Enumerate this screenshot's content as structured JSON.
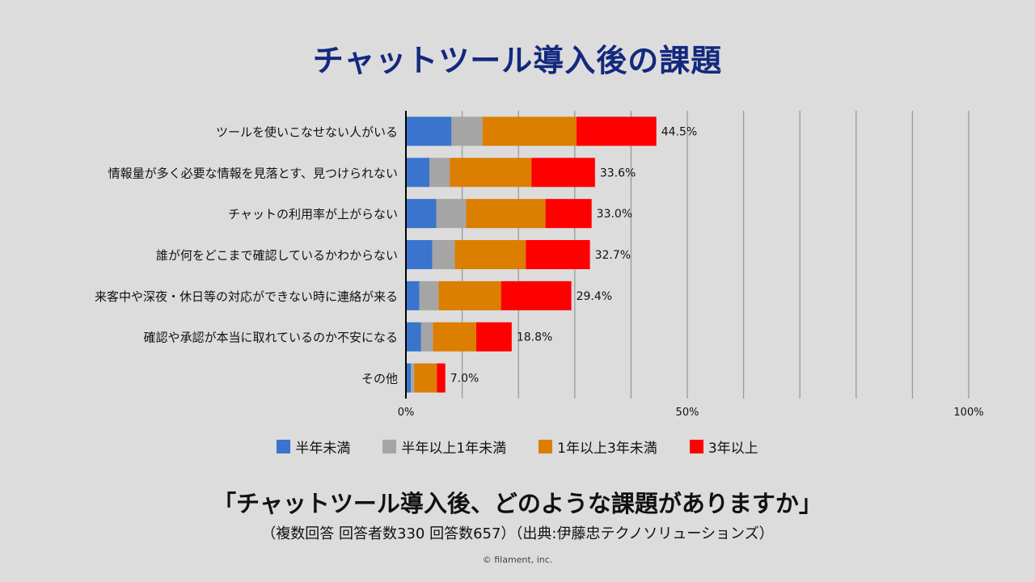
{
  "title": "チャットツール導入後の課題",
  "chart_data": {
    "type": "bar",
    "orientation": "horizontal",
    "stacked": true,
    "title": "チャットツール導入後の課題",
    "categories": [
      "ツールを使いこなせない人がいる",
      "情報量が多く必要な情報を見落とす、見つけられない",
      "チャットの利用率が上がらない",
      "誰が何をどこまで確認しているかわからない",
      "来客中や深夜・休日等の対応ができない時に連絡が来る",
      "確認や承認が本当に取れているのか不安になる",
      "その他"
    ],
    "series": [
      {
        "name": "半年未満",
        "color": "#3a74cc",
        "values": [
          8.1,
          4.2,
          5.4,
          4.7,
          2.4,
          2.7,
          0.9
        ]
      },
      {
        "name": "半年以上1年未満",
        "color": "#a5a5a5",
        "values": [
          5.5,
          3.6,
          5.3,
          4.0,
          3.4,
          2.1,
          0.6
        ]
      },
      {
        "name": "1年以上3年未満",
        "color": "#dc7e00",
        "values": [
          16.7,
          14.5,
          14.1,
          12.6,
          11.1,
          7.7,
          4.0
        ]
      },
      {
        "name": "3年以上",
        "color": "#ff0000",
        "values": [
          14.2,
          11.3,
          8.2,
          11.4,
          12.5,
          6.3,
          1.5
        ]
      }
    ],
    "totals": [
      44.5,
      33.6,
      33.0,
      32.7,
      29.4,
      18.8,
      7.0
    ],
    "total_labels": [
      "44.5%",
      "33.6%",
      "33.0%",
      "32.7%",
      "29.4%",
      "18.8%",
      "7.0%"
    ],
    "xlim": [
      0,
      100
    ],
    "x_ticks": [
      0,
      50,
      100
    ],
    "x_tick_labels": [
      "0%",
      "50%",
      "100%"
    ],
    "grid": true,
    "grid_step": 10,
    "legend_position": "bottom"
  },
  "question": "「チャットツール導入後、どのような課題がありますか」",
  "note": "（複数回答 回答者数330 回答数657）（出典:伊藤忠テクノソリューションズ）",
  "copyright": "© filament, inc."
}
